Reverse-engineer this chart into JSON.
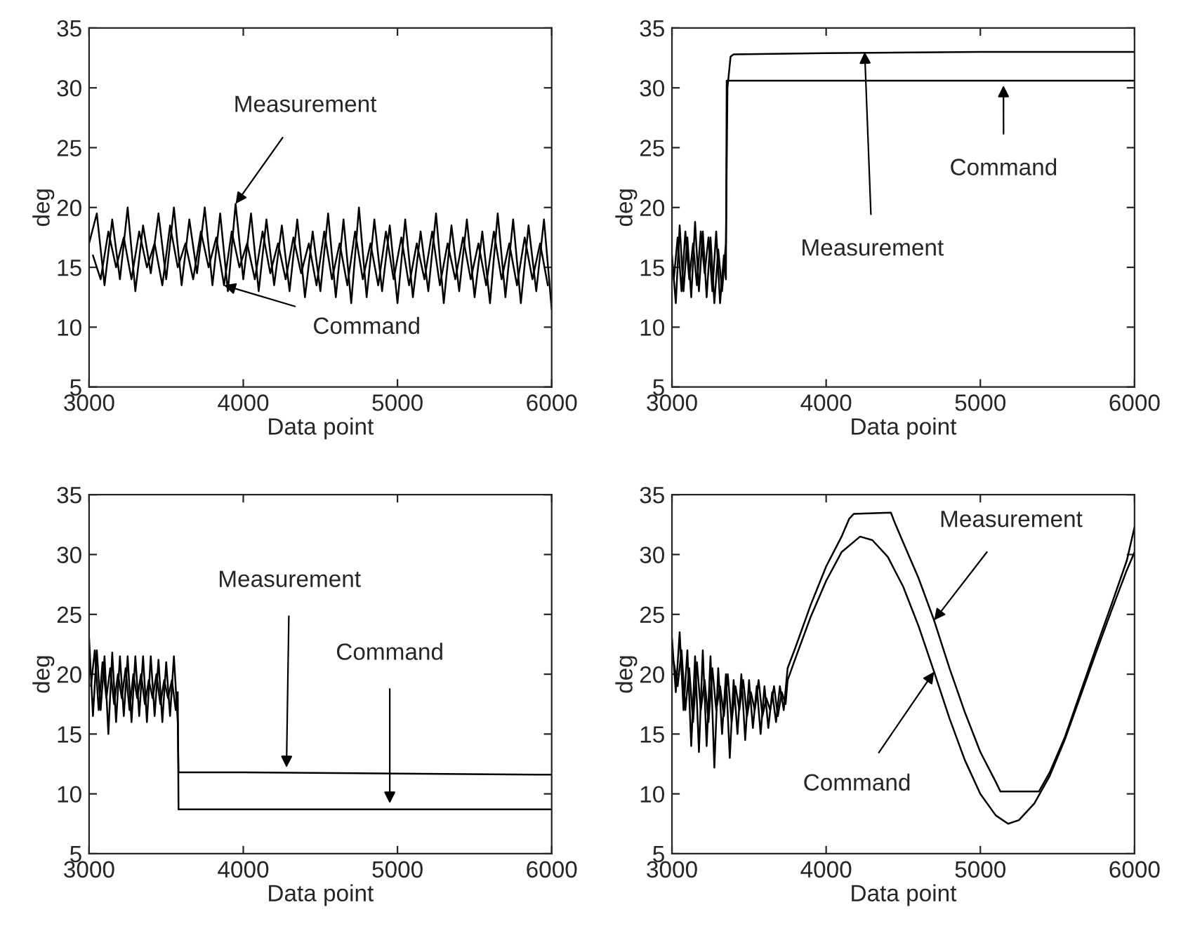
{
  "chart_data": [
    {
      "type": "line",
      "xlabel": "Data point",
      "ylabel": "deg",
      "xlim": [
        3000,
        6000
      ],
      "ylim": [
        5,
        35
      ],
      "xticks": [
        3000,
        4000,
        5000,
        6000
      ],
      "yticks": [
        5,
        10,
        15,
        20,
        25,
        30,
        35
      ],
      "grid": false,
      "legend": false,
      "annotations": [
        {
          "text": "Measurement",
          "x": 3950,
          "y": 20.3
        },
        {
          "text": "Command",
          "x": 3875,
          "y": 13.5
        }
      ],
      "series": [
        {
          "color": "#000000",
          "x": [
            3000,
            3050,
            3100,
            3150,
            3200,
            3250,
            3300,
            3350,
            3400,
            3450,
            3500,
            3550,
            3600,
            3650,
            3700,
            3750,
            3800,
            3850,
            3900,
            3950,
            4000,
            4050,
            4100,
            4150,
            4200,
            4250,
            4300,
            4350,
            4400,
            4450,
            4500,
            4550,
            4600,
            4650,
            4700,
            4750,
            4800,
            4850,
            4900,
            4950,
            5000,
            5050,
            5100,
            5150,
            5200,
            5250,
            5300,
            5350,
            5400,
            5450,
            5500,
            5550,
            5600,
            5650,
            5700,
            5750,
            5800,
            5850,
            5900,
            5950,
            6000
          ],
          "values": [
            17,
            19.5,
            13.5,
            19,
            14,
            20,
            13,
            18.5,
            14.5,
            19.5,
            14,
            20,
            13.5,
            19,
            14.5,
            20,
            13.5,
            19.5,
            13,
            20.3,
            14,
            19.5,
            13,
            19,
            13.5,
            18.5,
            13,
            19,
            12.5,
            18,
            13,
            19.5,
            12.5,
            19,
            12,
            20,
            12.5,
            19,
            13,
            18.5,
            12,
            19,
            12.5,
            18,
            13,
            19.5,
            12,
            18.5,
            13,
            19,
            12.5,
            18,
            12,
            19.5,
            12.5,
            19,
            12,
            18.5,
            13,
            19,
            11.5
          ]
        },
        {
          "color": "#000000",
          "x": [
            3025,
            3075,
            3125,
            3175,
            3225,
            3275,
            3325,
            3375,
            3425,
            3475,
            3525,
            3575,
            3625,
            3675,
            3725,
            3775,
            3825,
            3875,
            3925,
            3975,
            4025,
            4075,
            4125,
            4175,
            4225,
            4275,
            4325,
            4375,
            4425,
            4475,
            4525,
            4575,
            4625,
            4675,
            4725,
            4775,
            4825,
            4875,
            4925,
            4975,
            5025,
            5075,
            5125,
            5175,
            5225,
            5275,
            5325,
            5375,
            5425,
            5475,
            5525,
            5575,
            5625,
            5675,
            5725,
            5775,
            5825,
            5875,
            5925,
            5975
          ],
          "values": [
            16,
            14,
            18,
            15,
            17.5,
            14,
            18,
            15,
            17,
            13.5,
            18.5,
            15,
            17,
            14,
            18,
            15,
            17.5,
            13.5,
            18,
            15,
            17,
            14,
            18,
            14.5,
            17,
            14,
            17.5,
            14.5,
            17,
            13.5,
            18,
            14,
            17,
            13.5,
            18,
            14,
            17,
            13.5,
            18,
            14,
            17.5,
            13.5,
            17,
            14,
            18,
            13.5,
            17,
            14,
            17.5,
            14,
            17,
            13.5,
            18,
            14,
            17,
            13.5,
            17.5,
            14,
            17,
            13.5
          ]
        }
      ]
    },
    {
      "type": "line",
      "xlabel": "Data point",
      "ylabel": "deg",
      "xlim": [
        3000,
        6000
      ],
      "ylim": [
        5,
        35
      ],
      "xticks": [
        3000,
        4000,
        5000,
        6000
      ],
      "yticks": [
        5,
        10,
        15,
        20,
        25,
        30,
        35
      ],
      "grid": false,
      "legend": false,
      "annotations": [
        {
          "text": "Measurement",
          "x": 4250,
          "y": 33
        },
        {
          "text": "Command",
          "x": 5150,
          "y": 30.2
        }
      ],
      "series": [
        {
          "color": "#000000",
          "x": [
            3000,
            3025,
            3050,
            3075,
            3100,
            3125,
            3150,
            3175,
            3200,
            3225,
            3250,
            3275,
            3300,
            3325,
            3350,
            3360,
            3380,
            3400,
            4000,
            5000,
            6000
          ],
          "values": [
            16,
            12,
            18.5,
            13,
            17.5,
            12.5,
            18.8,
            13,
            18,
            12.5,
            17.5,
            12,
            16.5,
            13,
            17,
            30,
            32.6,
            32.8,
            32.9,
            33,
            33
          ]
        },
        {
          "color": "#000000",
          "x": [
            3012,
            3037,
            3062,
            3087,
            3112,
            3137,
            3162,
            3187,
            3212,
            3237,
            3262,
            3287,
            3312,
            3337,
            3350,
            3355,
            6000
          ],
          "values": [
            14,
            17.5,
            13,
            18,
            14,
            17,
            13.5,
            18,
            14.5,
            17.5,
            13,
            18,
            12,
            16,
            14,
            30.6,
            30.6
          ]
        }
      ]
    },
    {
      "type": "line",
      "xlabel": "Data point",
      "ylabel": "deg",
      "xlim": [
        3000,
        6000
      ],
      "ylim": [
        5,
        35
      ],
      "xticks": [
        3000,
        4000,
        5000,
        6000
      ],
      "yticks": [
        5,
        10,
        15,
        20,
        25,
        30,
        35
      ],
      "grid": false,
      "legend": false,
      "annotations": [
        {
          "text": "Measurement",
          "x": 4280,
          "y": 12.2
        },
        {
          "text": "Command",
          "x": 4950,
          "y": 9.2
        }
      ],
      "series": [
        {
          "color": "#000000",
          "x": [
            3000,
            3025,
            3050,
            3075,
            3100,
            3125,
            3150,
            3175,
            3200,
            3225,
            3250,
            3275,
            3300,
            3325,
            3350,
            3375,
            3400,
            3425,
            3450,
            3475,
            3500,
            3525,
            3550,
            3575,
            3580,
            4000,
            5000,
            6000
          ],
          "values": [
            23,
            16.5,
            22,
            17,
            21.5,
            15,
            21.8,
            16,
            21.5,
            16.5,
            21.5,
            16,
            21.5,
            16.5,
            21.5,
            16,
            21.5,
            16.5,
            21.2,
            16,
            21,
            16.5,
            21.5,
            16,
            11.8,
            11.8,
            11.7,
            11.6
          ]
        },
        {
          "color": "#000000",
          "x": [
            3012,
            3037,
            3062,
            3087,
            3112,
            3137,
            3162,
            3187,
            3212,
            3237,
            3262,
            3287,
            3312,
            3337,
            3362,
            3387,
            3412,
            3437,
            3462,
            3487,
            3512,
            3537,
            3562,
            3575,
            3580,
            6000
          ],
          "values": [
            19,
            22,
            17,
            21,
            18,
            20.5,
            17.5,
            20,
            18,
            20.5,
            17,
            20,
            18,
            20,
            17.5,
            19.5,
            18,
            20,
            17.5,
            19.5,
            18,
            19.5,
            17,
            18.5,
            8.7,
            8.7
          ]
        }
      ]
    },
    {
      "type": "line",
      "xlabel": "Data point",
      "ylabel": "deg",
      "xlim": [
        3000,
        6000
      ],
      "ylim": [
        5,
        35
      ],
      "xticks": [
        3000,
        4000,
        5000,
        6000
      ],
      "yticks": [
        5,
        10,
        15,
        20,
        25,
        30,
        35
      ],
      "grid": false,
      "legend": false,
      "annotations": [
        {
          "text": "Measurement",
          "x": 4700,
          "y": 24.5
        },
        {
          "text": "Command",
          "x": 4700,
          "y": 20.2
        }
      ],
      "series": [
        {
          "color": "#000000",
          "x": [
            3000,
            3025,
            3050,
            3075,
            3100,
            3125,
            3150,
            3175,
            3200,
            3225,
            3250,
            3275,
            3300,
            3325,
            3350,
            3375,
            3400,
            3425,
            3450,
            3475,
            3500,
            3525,
            3550,
            3575,
            3600,
            3625,
            3650,
            3675,
            3700,
            3725,
            3750,
            3800,
            3900,
            4000,
            4100,
            4150,
            4180,
            4420,
            4450,
            4500,
            4600,
            4700,
            4800,
            4900,
            5000,
            5100,
            5130,
            5380,
            5450,
            5550,
            5650,
            5750,
            5850,
            5950,
            6000
          ],
          "values": [
            23,
            18.5,
            23.5,
            17,
            22,
            14,
            21.5,
            13.5,
            22,
            14,
            21.5,
            12.2,
            20.5,
            15,
            20,
            13,
            19.5,
            15,
            20,
            14.5,
            19.5,
            15.5,
            19,
            15,
            19,
            15.5,
            18.5,
            16,
            19,
            17,
            20.5,
            22.2,
            25.8,
            29,
            31.5,
            33,
            33.4,
            33.5,
            32.5,
            31,
            28,
            24.5,
            20.5,
            16.8,
            13.5,
            11,
            10.2,
            10.2,
            11.8,
            14.8,
            18.5,
            22.2,
            25.8,
            29.5,
            32.3
          ]
        },
        {
          "color": "#000000",
          "x": [
            3012,
            3037,
            3062,
            3087,
            3112,
            3137,
            3162,
            3187,
            3212,
            3237,
            3262,
            3287,
            3312,
            3337,
            3362,
            3387,
            3412,
            3437,
            3462,
            3487,
            3512,
            3537,
            3562,
            3587,
            3612,
            3637,
            3662,
            3687,
            3712,
            3737,
            3750,
            3800,
            3900,
            4000,
            4100,
            4220,
            4300,
            4400,
            4500,
            4600,
            4700,
            4800,
            4900,
            5000,
            5100,
            5180,
            5250,
            5350,
            5450,
            5550,
            5650,
            5750,
            5850,
            5950,
            6000
          ],
          "values": [
            21,
            19,
            22,
            17,
            20.5,
            16,
            21,
            17,
            19.5,
            16,
            20.5,
            17,
            19,
            16.5,
            20,
            16,
            19,
            17,
            19.5,
            16.5,
            18.5,
            17,
            19.5,
            16.5,
            18,
            17,
            19,
            16.5,
            18.5,
            17.5,
            19.5,
            21.3,
            24.8,
            27.8,
            30.2,
            31.5,
            31.2,
            29.8,
            27.3,
            24,
            20.2,
            16.3,
            12.8,
            10,
            8.2,
            7.5,
            7.8,
            9.2,
            11.5,
            14.6,
            18.2,
            21.8,
            25.3,
            28.7,
            30.2
          ]
        }
      ]
    }
  ]
}
